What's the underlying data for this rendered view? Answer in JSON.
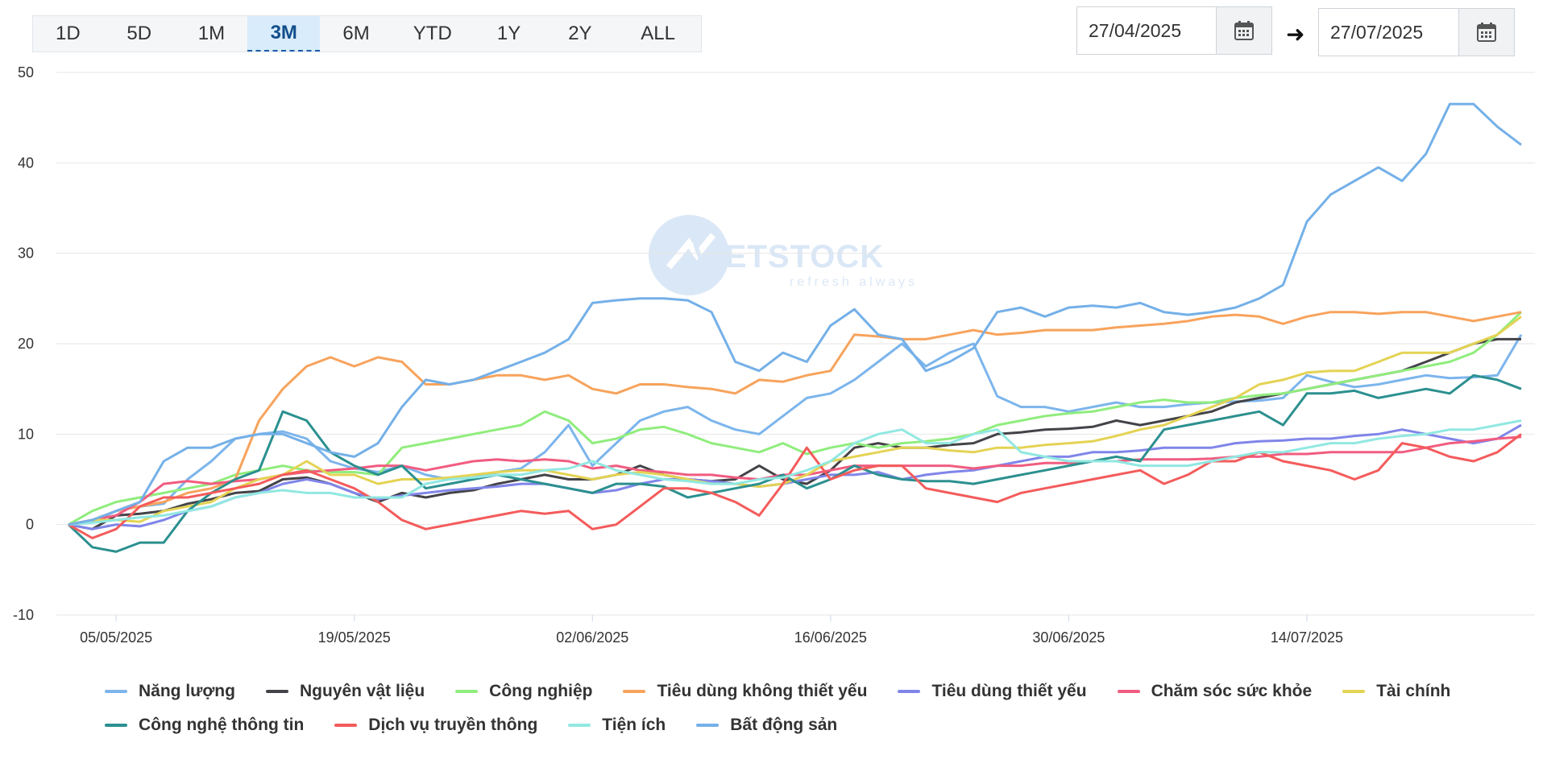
{
  "range_buttons": [
    {
      "label": "1D",
      "active": false
    },
    {
      "label": "5D",
      "active": false
    },
    {
      "label": "1M",
      "active": false
    },
    {
      "label": "3M",
      "active": true
    },
    {
      "label": "6M",
      "active": false
    },
    {
      "label": "YTD",
      "active": false
    },
    {
      "label": "1Y",
      "active": false
    },
    {
      "label": "2Y",
      "active": false
    },
    {
      "label": "ALL",
      "active": false
    }
  ],
  "date_from": "27/04/2025",
  "date_to": "27/07/2025",
  "watermark": {
    "brand": "VIETSTOCK",
    "tagline": "refresh always"
  },
  "chart_data": {
    "type": "line",
    "x": [
      "28/04",
      "29/04",
      "05/05",
      "06/05",
      "07/05",
      "08/05",
      "09/05",
      "12/05",
      "13/05",
      "14/05",
      "15/05",
      "16/05",
      "19/05",
      "20/05",
      "21/05",
      "22/05",
      "23/05",
      "26/05",
      "27/05",
      "28/05",
      "29/05",
      "30/05",
      "02/06",
      "03/06",
      "04/06",
      "05/06",
      "06/06",
      "09/06",
      "10/06",
      "11/06",
      "12/06",
      "13/06",
      "16/06",
      "17/06",
      "18/06",
      "19/06",
      "20/06",
      "23/06",
      "24/06",
      "25/06",
      "26/06",
      "27/06",
      "30/06",
      "01/07",
      "02/07",
      "03/07",
      "04/07",
      "07/07",
      "08/07",
      "09/07",
      "10/07",
      "11/07",
      "14/07",
      "15/07",
      "16/07",
      "17/07",
      "18/07",
      "21/07",
      "22/07",
      "23/07",
      "24/07",
      "25/07"
    ],
    "x_tick_labels": [
      "05/05/2025",
      "19/05/2025",
      "02/06/2025",
      "16/06/2025",
      "30/06/2025",
      "14/07/2025"
    ],
    "ylim": [
      -10,
      50
    ],
    "y_ticks": [
      -10,
      0,
      10,
      20,
      30,
      40,
      50
    ],
    "grid": true,
    "legend_position": "bottom",
    "series": [
      {
        "name": "Năng lượng",
        "color": "#7cb5ec",
        "values": [
          0,
          0.3,
          1.5,
          2,
          2.3,
          5,
          7,
          9.5,
          10,
          10.3,
          9.5,
          7,
          6.2,
          5.8,
          6.5,
          5.5,
          5,
          5.2,
          5.8,
          6.2,
          8,
          11,
          6.5,
          9,
          11.5,
          12.5,
          13,
          11.5,
          10.5,
          10,
          12,
          14,
          14.5,
          16,
          18,
          20,
          17.5,
          19,
          20,
          14.2,
          13,
          13,
          12.5,
          13,
          13.5,
          13,
          13,
          13.3,
          13.5,
          13.6,
          13.7,
          14,
          16.5,
          15.8,
          15.2,
          15.5,
          16,
          16.5,
          16.2,
          16.3,
          16.5,
          21
        ]
      },
      {
        "name": "Nguyên vật liệu",
        "color": "#434348",
        "values": [
          0,
          -0.5,
          1,
          1.2,
          1.5,
          2.3,
          2.8,
          3.5,
          3.7,
          5,
          5.2,
          4.5,
          3.5,
          2.5,
          3.5,
          3,
          3.5,
          3.8,
          4.5,
          5,
          5.5,
          5,
          5,
          5.5,
          6.5,
          5.5,
          5,
          4.8,
          5,
          6.5,
          5,
          4.5,
          6,
          8.5,
          9,
          8.5,
          8.5,
          8.8,
          9,
          10,
          10.2,
          10.5,
          10.6,
          10.8,
          11.5,
          11,
          11.5,
          12,
          12.5,
          13.5,
          14,
          14.5,
          15,
          15.5,
          16,
          16.5,
          17,
          18,
          19,
          20,
          20.5,
          20.5
        ]
      },
      {
        "name": "Công nghiệp",
        "color": "#90ed7d",
        "values": [
          0,
          1.5,
          2.5,
          3,
          3.5,
          4,
          4.5,
          5.5,
          6,
          6.5,
          6,
          5.8,
          5.8,
          5.5,
          8.5,
          9,
          9.5,
          10,
          10.5,
          11,
          12.5,
          11.5,
          9,
          9.5,
          10.5,
          10.8,
          10,
          9,
          8.5,
          8,
          9,
          7.8,
          8.5,
          9,
          8.5,
          9,
          9.2,
          9.5,
          10,
          11,
          11.5,
          12,
          12.3,
          12.5,
          13,
          13.5,
          13.8,
          13.5,
          13.5,
          14,
          14.3,
          14.5,
          15,
          15.5,
          16,
          16.5,
          17,
          17.5,
          18,
          19,
          21,
          23.5
        ]
      },
      {
        "name": "Tiêu dùng không thiết yếu",
        "color": "#f7a35c",
        "values": [
          0,
          0.5,
          1.5,
          2,
          2.5,
          3.5,
          4,
          5,
          11.5,
          15,
          17.5,
          18.5,
          17.5,
          18.5,
          18,
          15.5,
          15.5,
          16,
          16.5,
          16.5,
          16,
          16.5,
          15,
          14.5,
          15.5,
          15.5,
          15.2,
          15,
          14.5,
          16,
          15.8,
          16.5,
          17,
          21,
          20.8,
          20.5,
          20.5,
          21,
          21.5,
          21,
          21.2,
          21.5,
          21.5,
          21.5,
          21.8,
          22,
          22.2,
          22.5,
          23,
          23.2,
          23,
          22.2,
          23,
          23.5,
          23.5,
          23.3,
          23.5,
          23.5,
          23,
          22.5,
          23,
          23.5
        ]
      },
      {
        "name": "Tiêu dùng thiết yếu",
        "color": "#8085e9",
        "values": [
          0,
          -0.5,
          0,
          -0.2,
          0.5,
          1.5,
          2,
          3,
          3.5,
          4.5,
          5,
          4.5,
          3.5,
          2.8,
          3.2,
          3.5,
          3.8,
          4,
          4.2,
          4.5,
          4.5,
          4,
          3.5,
          3.8,
          4.5,
          5,
          5,
          4.8,
          4.5,
          4.2,
          4.5,
          5,
          5.5,
          5.5,
          5.8,
          5,
          5.5,
          5.8,
          6,
          6.5,
          7,
          7.5,
          7.5,
          8,
          8,
          8.2,
          8.5,
          8.5,
          8.5,
          9,
          9.2,
          9.3,
          9.5,
          9.5,
          9.8,
          10,
          10.5,
          10,
          9.5,
          9,
          9.5,
          11
        ]
      },
      {
        "name": "Chăm sóc sức khỏe",
        "color": "#f15c80",
        "values": [
          0,
          0.5,
          1,
          2.5,
          4.5,
          4.8,
          4.5,
          4.8,
          5,
          5.5,
          5.8,
          6,
          6.2,
          6.5,
          6.5,
          6,
          6.5,
          7,
          7.2,
          7,
          7.2,
          7,
          6.2,
          6.5,
          6,
          5.8,
          5.5,
          5.5,
          5.2,
          5,
          5.5,
          5.5,
          6,
          6.5,
          6.5,
          6.5,
          6.5,
          6.5,
          6.2,
          6.5,
          6.5,
          6.8,
          6.8,
          7,
          7,
          7.2,
          7.2,
          7.2,
          7.3,
          7.5,
          7.5,
          7.8,
          7.8,
          8,
          8,
          8,
          8,
          8.5,
          9,
          9.2,
          9.5,
          9.7
        ]
      },
      {
        "name": "Tài chính",
        "color": "#e4d354",
        "values": [
          0,
          0.5,
          0.5,
          0.3,
          1.5,
          2,
          2.5,
          4,
          5,
          5.5,
          7,
          5.5,
          5.5,
          4.5,
          5,
          5,
          5.2,
          5.5,
          5.8,
          6,
          6,
          5.5,
          5,
          5.5,
          5.8,
          5.5,
          5,
          4.5,
          4.5,
          4.2,
          4.5,
          5.5,
          7,
          7.5,
          8,
          8.5,
          8.5,
          8.2,
          8,
          8.5,
          8.5,
          8.8,
          9,
          9.2,
          9.8,
          10.5,
          11,
          12,
          13,
          14,
          15.5,
          16,
          16.8,
          17,
          17,
          18,
          19,
          19,
          19,
          20,
          21,
          23
        ]
      },
      {
        "name": "Công nghệ thông tin",
        "color": "#2b908f",
        "values": [
          0,
          -2.5,
          -3,
          -2,
          -2,
          1.5,
          3.5,
          5,
          6,
          12.5,
          11.5,
          8,
          6.5,
          5.5,
          6.5,
          4,
          4.5,
          5,
          5.5,
          5,
          4.5,
          4,
          3.5,
          4.5,
          4.5,
          4.2,
          3,
          3.5,
          4,
          4.5,
          5.5,
          4,
          5,
          6.5,
          5.5,
          5,
          4.8,
          4.8,
          4.5,
          5,
          5.5,
          6,
          6.5,
          7,
          7.5,
          7,
          10.5,
          11,
          11.5,
          12,
          12.5,
          11,
          14.5,
          14.5,
          14.8,
          14,
          14.5,
          15,
          14.5,
          16.5,
          16,
          15
        ]
      },
      {
        "name": "Dịch vụ truyền thông",
        "color": "#f45b5b",
        "values": [
          0,
          -1.5,
          -0.5,
          2,
          3,
          3,
          3.5,
          4,
          4.5,
          5.5,
          6,
          5,
          4,
          2.5,
          0.5,
          -0.5,
          0,
          0.5,
          1,
          1.5,
          1.2,
          1.5,
          -0.5,
          0,
          2,
          4,
          4,
          3.5,
          2.5,
          1,
          4.5,
          8.5,
          5,
          6,
          6.5,
          6.5,
          4,
          3.5,
          3,
          2.5,
          3.5,
          4,
          4.5,
          5,
          5.5,
          6,
          4.5,
          5.5,
          7,
          7,
          8,
          7,
          6.5,
          6,
          5,
          6,
          9,
          8.5,
          7.5,
          7,
          8,
          10
        ]
      },
      {
        "name": "Tiện ích",
        "color": "#91e8e1",
        "values": [
          0,
          0.2,
          0.5,
          0.8,
          1,
          1.5,
          2,
          3,
          3.5,
          3.8,
          3.5,
          3.5,
          3,
          3,
          3,
          4.5,
          5,
          5.2,
          5.5,
          5.5,
          6,
          6.2,
          7,
          6,
          5.5,
          5,
          4.8,
          4.5,
          4.5,
          5,
          5.2,
          6,
          7,
          9,
          10,
          10.5,
          9,
          9,
          10,
          10.5,
          8,
          7.5,
          7,
          7,
          7,
          6.5,
          6.5,
          6.5,
          7,
          7.5,
          8,
          8,
          8.5,
          9,
          9,
          9.5,
          9.8,
          10,
          10.5,
          10.5,
          11,
          11.5
        ]
      },
      {
        "name": "Bất động sản",
        "color": "#74b0e8",
        "values": [
          0,
          0.5,
          1.5,
          2.5,
          7,
          8.5,
          8.5,
          9.5,
          10,
          10,
          9,
          8,
          7.5,
          9,
          13,
          16,
          15.5,
          16,
          17,
          18,
          19,
          20.5,
          24.5,
          24.8,
          25,
          25,
          24.8,
          23.5,
          18,
          17,
          19,
          18,
          22,
          23.8,
          21,
          20.5,
          17,
          18,
          19.5,
          23.5,
          24,
          23,
          24,
          24.2,
          24,
          24.5,
          23.5,
          23.2,
          23.5,
          24,
          25,
          26.5,
          33.5,
          36.5,
          38,
          39.5,
          38,
          41,
          46.5,
          46.5,
          44,
          42
        ]
      }
    ]
  }
}
